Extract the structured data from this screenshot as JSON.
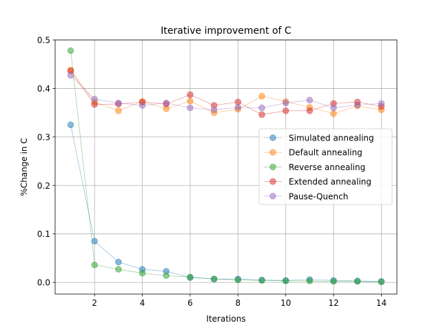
{
  "chart_data": {
    "type": "line",
    "title": "Iterative improvement of C",
    "xlabel": "Iterations",
    "ylabel": "%Change in C",
    "xlim": [
      0.35,
      14.65
    ],
    "ylim": [
      -0.024,
      0.5
    ],
    "xticks": [
      2,
      4,
      6,
      8,
      10,
      12,
      14
    ],
    "xtick_labels": [
      "2",
      "4",
      "6",
      "8",
      "10",
      "12",
      "14"
    ],
    "yticks": [
      0.0,
      0.1,
      0.2,
      0.3,
      0.4,
      0.5
    ],
    "ytick_labels": [
      "0.0",
      "0.1",
      "0.2",
      "0.3",
      "0.4",
      "0.5"
    ],
    "grid": true,
    "legend_position": "center-right",
    "x": [
      1,
      2,
      3,
      4,
      5,
      6,
      7,
      8,
      9,
      10,
      11,
      12,
      13,
      14
    ],
    "series": [
      {
        "name": "Simulated annealing",
        "color": "#1f77b4",
        "values": [
          0.325,
          0.085,
          0.042,
          0.027,
          0.023,
          0.01,
          0.007,
          0.007,
          0.005,
          0.004,
          0.006,
          0.004,
          0.003,
          0.002
        ]
      },
      {
        "name": "Default annealing",
        "color": "#ff7f0e",
        "values": [
          0.438,
          0.372,
          0.354,
          0.373,
          0.358,
          0.374,
          0.35,
          0.357,
          0.384,
          0.373,
          0.361,
          0.348,
          0.364,
          0.356
        ]
      },
      {
        "name": "Reverse annealing",
        "color": "#2ca02c",
        "values": [
          0.478,
          0.036,
          0.027,
          0.019,
          0.014,
          0.011,
          0.007,
          0.005,
          0.004,
          0.003,
          0.003,
          0.002,
          0.002,
          0.001
        ]
      },
      {
        "name": "Extended annealing",
        "color": "#d62728",
        "values": [
          0.436,
          0.367,
          0.368,
          0.372,
          0.368,
          0.387,
          0.365,
          0.372,
          0.346,
          0.354,
          0.354,
          0.369,
          0.372,
          0.363
        ]
      },
      {
        "name": "Pause-Quench",
        "color": "#9467bd",
        "values": [
          0.427,
          0.378,
          0.37,
          0.365,
          0.37,
          0.36,
          0.356,
          0.361,
          0.36,
          0.37,
          0.376,
          0.36,
          0.366,
          0.369
        ]
      }
    ]
  }
}
